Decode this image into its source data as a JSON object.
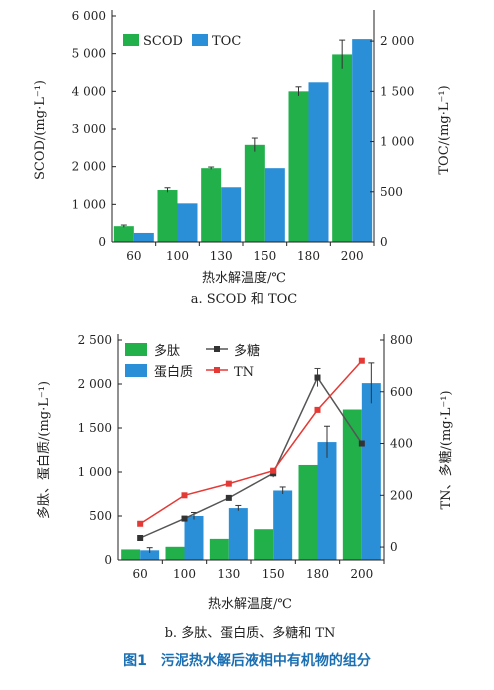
{
  "figure_caption": "图1　污泥热水解后液相中有机物的组分",
  "colors": {
    "green": "#22b04b",
    "blue": "#2b8fd8",
    "black_line": "#555555",
    "red_line": "#e53935",
    "caption": "#1a6fb3"
  },
  "chart_data": [
    {
      "type": "bar",
      "subcaption": "a. SCOD 和 TOC",
      "categories": [
        "60",
        "100",
        "130",
        "150",
        "180",
        "200"
      ],
      "xlabel": "热水解温度/℃",
      "ylabel_left": "SCOD/(mg·L⁻¹)",
      "ylabel_right": "TOC/(mg·L⁻¹)",
      "ylim_left": [
        0,
        6000
      ],
      "ylim_right": [
        0,
        2250
      ],
      "yticks_left": [
        "0",
        "1 000",
        "2 000",
        "3 000",
        "4 000",
        "5 000",
        "6 000"
      ],
      "yticks_right": [
        "0",
        "500",
        "1 000",
        "1 500",
        "2 000"
      ],
      "legend_position": "top-left",
      "series": [
        {
          "name": "SCOD",
          "axis": "left",
          "color": "#22b04b",
          "values": [
            420,
            1380,
            1960,
            2580,
            4000,
            4980
          ],
          "errors": [
            30,
            60,
            30,
            180,
            120,
            380
          ]
        },
        {
          "name": "TOC",
          "axis": "right",
          "color": "#2b8fd8",
          "values": [
            90,
            385,
            545,
            735,
            1590,
            2020
          ],
          "errors": [
            0,
            0,
            0,
            0,
            0,
            0
          ]
        }
      ]
    },
    {
      "type": "bar+line",
      "subcaption": "b. 多肽、蛋白质、多糖和 TN",
      "categories": [
        "60",
        "100",
        "130",
        "150",
        "180",
        "200"
      ],
      "xlabel": "热水解温度/℃",
      "ylabel_left": "多肽、蛋白质/(mg·L⁻¹)",
      "ylabel_right": "TN、多糖/(mg·L⁻¹)",
      "ylim_left": [
        0,
        2500
      ],
      "ylim_right": [
        -50,
        800
      ],
      "yticks_left": [
        "0",
        "500",
        "1 000",
        "1 500",
        "2 000",
        "2 500"
      ],
      "yticks_right": [
        "0",
        "200",
        "400",
        "600",
        "800"
      ],
      "legend_position": "top-left",
      "bars": [
        {
          "name": "多肽",
          "axis": "left",
          "color": "#22b04b",
          "values": [
            120,
            150,
            240,
            350,
            1080,
            1710
          ],
          "errors": [
            0,
            0,
            0,
            0,
            0,
            0
          ]
        },
        {
          "name": "蛋白质",
          "axis": "left",
          "color": "#2b8fd8",
          "values": [
            110,
            500,
            590,
            790,
            1340,
            2010
          ],
          "errors": [
            30,
            40,
            30,
            40,
            180,
            230
          ]
        }
      ],
      "lines": [
        {
          "name": "多糖",
          "axis": "right",
          "color": "#555555",
          "marker": "square",
          "values": [
            35,
            110,
            190,
            285,
            655,
            400
          ],
          "errors": [
            0,
            0,
            0,
            15,
            35,
            0
          ]
        },
        {
          "name": "TN",
          "axis": "right",
          "color": "#e53935",
          "marker": "square",
          "values": [
            90,
            200,
            245,
            295,
            530,
            720
          ],
          "errors": [
            0,
            0,
            0,
            0,
            0,
            0
          ]
        }
      ]
    }
  ]
}
